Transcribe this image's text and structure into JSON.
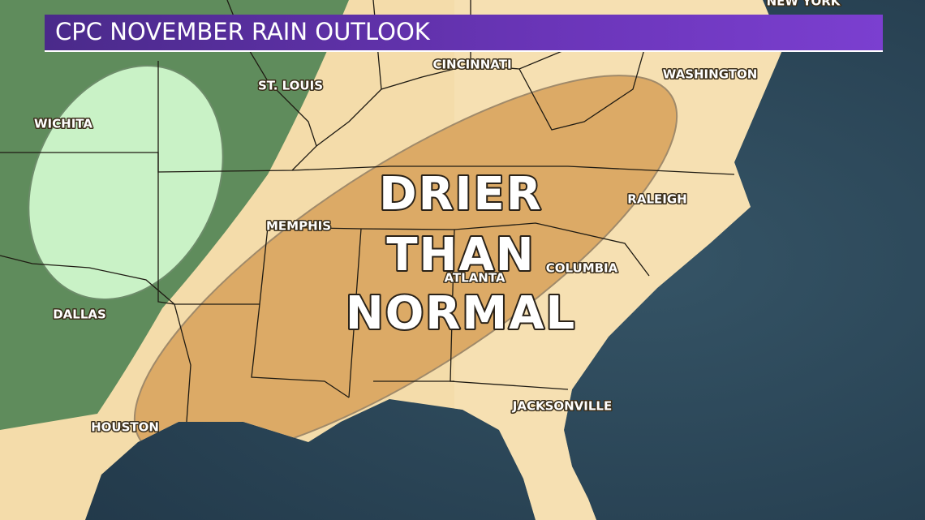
{
  "title": "CPC NOVEMBER RAIN OUTLOOK",
  "cities": [
    "NEW YORK",
    "CINCINNATI",
    "WASHINGTON",
    "ST. LOUIS",
    "WICHITA",
    "RALEIGH",
    "MEMPHIS",
    "COLUMBIA",
    "ATLANTA",
    "DALLAS",
    "JACKSONVILLE",
    "HOUSTON"
  ],
  "outlook_label": [
    "DRIER",
    "THAN",
    "NORMAL"
  ]
}
